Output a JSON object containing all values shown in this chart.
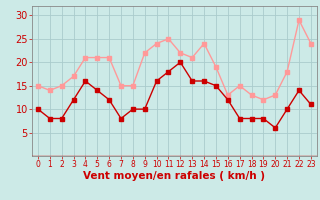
{
  "hours": [
    0,
    1,
    2,
    3,
    4,
    5,
    6,
    7,
    8,
    9,
    10,
    11,
    12,
    13,
    14,
    15,
    16,
    17,
    18,
    19,
    20,
    21,
    22,
    23
  ],
  "avg_wind": [
    10,
    8,
    8,
    12,
    16,
    14,
    12,
    8,
    10,
    10,
    16,
    18,
    20,
    16,
    16,
    15,
    12,
    8,
    8,
    8,
    6,
    10,
    14,
    11
  ],
  "gust_wind": [
    15,
    14,
    15,
    17,
    21,
    21,
    21,
    15,
    15,
    22,
    24,
    25,
    22,
    21,
    24,
    19,
    13,
    15,
    13,
    12,
    13,
    18,
    29,
    24
  ],
  "bg_color": "#cceae7",
  "avg_color": "#cc0000",
  "gust_color": "#ff9999",
  "grid_color": "#aacccc",
  "xlabel": "Vent moyen/en rafales ( km/h )",
  "xlabel_color": "#cc0000",
  "tick_color": "#cc0000",
  "spine_color": "#888888",
  "ylim": [
    0,
    32
  ],
  "xlim": [
    -0.5,
    23.5
  ],
  "yticks": [
    5,
    10,
    15,
    20,
    25,
    30
  ],
  "ytick_fontsize": 7,
  "xtick_fontsize": 5.5,
  "xlabel_fontsize": 7.5,
  "linewidth": 1.0,
  "markersize": 2.5
}
